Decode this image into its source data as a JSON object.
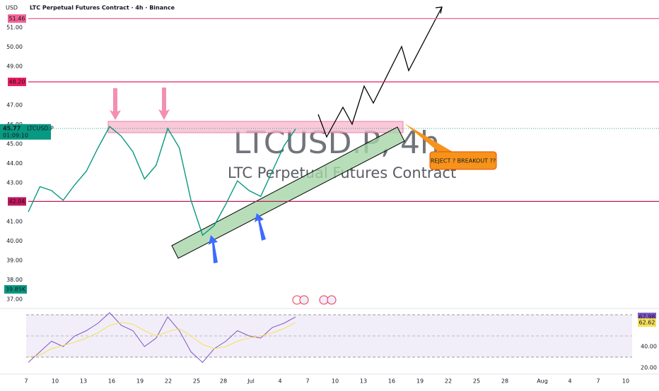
{
  "header": {
    "currency": "USD",
    "title": "LTC Perpetual Futures Contract · 4h · Binance"
  },
  "watermark": {
    "symbol": "LTCUSD.P, 4h",
    "name": "LTC Perpetual Futures Contract"
  },
  "price_axis": {
    "ticks": [
      "51.00",
      "50.00",
      "49.00",
      "47.00",
      "46.00",
      "45.00",
      "44.00",
      "43.00",
      "41.00",
      "40.00",
      "39.00",
      "38.00",
      "37.00"
    ]
  },
  "levels": [
    "51.46",
    "48.20",
    "42.04"
  ],
  "price": {
    "symbol": "LTCUSD.P",
    "countdown": "01:09:10",
    "values": [
      41.5,
      42.8,
      42.6,
      42.1,
      42.9,
      43.6,
      44.8,
      45.9,
      45.4,
      44.6,
      43.2,
      43.9,
      45.8,
      44.8,
      42.1,
      40.3,
      40.8,
      41.9,
      43.1,
      42.6,
      42.3,
      43.6,
      44.9,
      45.77
    ]
  },
  "volume_label": "39.85K",
  "annotation": "REJECT ? BREAKOUT ??",
  "rsi": {
    "ticks": [
      "40.00",
      "20.00"
    ],
    "values": [
      25,
      35,
      45,
      40,
      50,
      55,
      62,
      72,
      60,
      55,
      40,
      48,
      68,
      55,
      35,
      25,
      38,
      45,
      55,
      50,
      48,
      58,
      62,
      67.98
    ],
    "ma_values": [
      30,
      32,
      38,
      41,
      44,
      48,
      53,
      60,
      63,
      61,
      55,
      50,
      54,
      57,
      50,
      42,
      38,
      40,
      45,
      48,
      50,
      53,
      57,
      62.62
    ]
  },
  "dates": [
    "7",
    "10",
    "13",
    "16",
    "19",
    "22",
    "25",
    "28",
    "Jul",
    "4",
    "7",
    "10",
    "13",
    "16",
    "19",
    "22",
    "25",
    "28",
    "Aug",
    "4",
    "7",
    "10"
  ]
}
